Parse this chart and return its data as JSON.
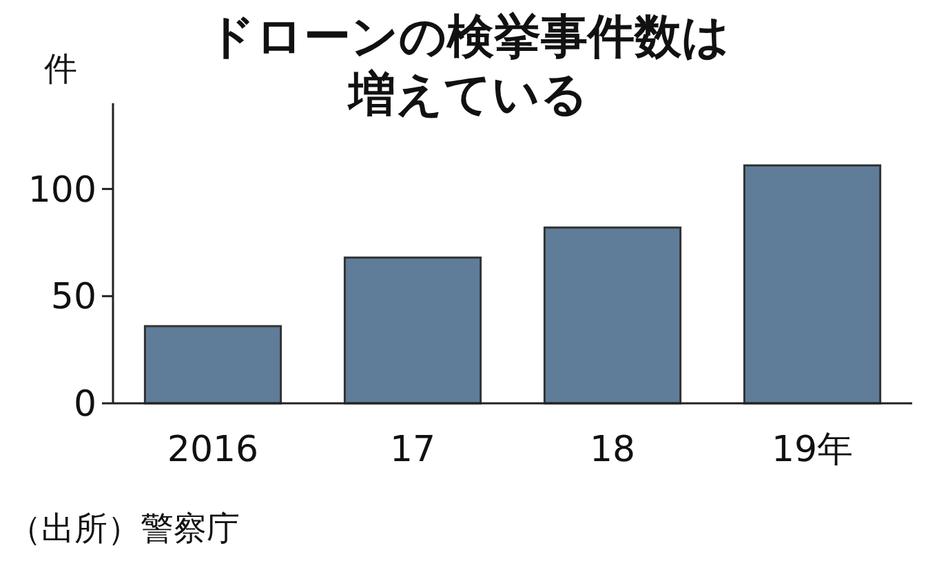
{
  "chart_data": {
    "type": "bar",
    "title": "ドローンの検挙事件数は増えている",
    "ylabel": "件",
    "categories": [
      "2016",
      "17",
      "18",
      "19年"
    ],
    "values": [
      36,
      68,
      82,
      111
    ],
    "color": "#5f7c99",
    "ylim": [
      0,
      140
    ],
    "yticks": [
      0,
      50,
      100
    ],
    "grid": false,
    "annotations": [
      "（出所）警察庁"
    ]
  }
}
